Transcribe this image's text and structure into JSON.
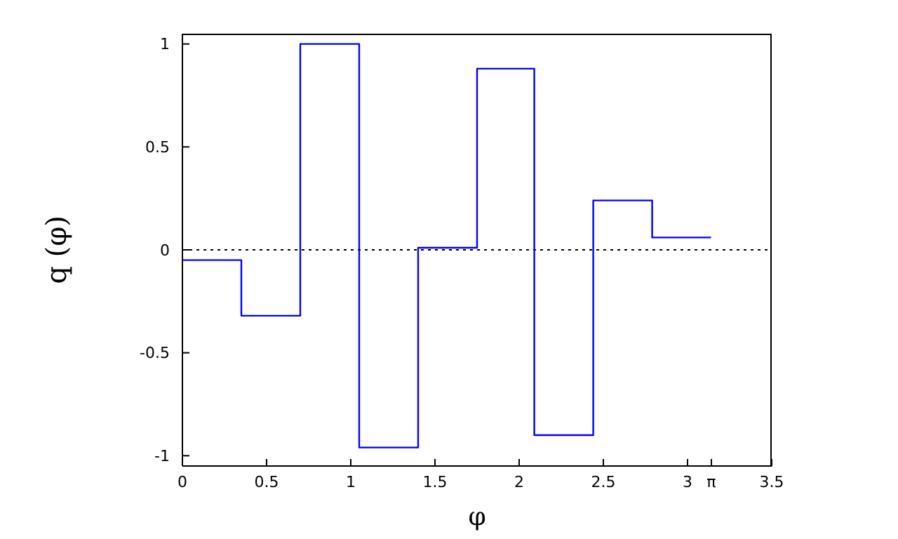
{
  "chart_data": {
    "type": "step",
    "xlabel": "φ",
    "ylabel": "q (φ)",
    "x": [
      0,
      0.35,
      0.7,
      1.05,
      1.4,
      1.75,
      2.09,
      2.44,
      2.79,
      3.14
    ],
    "series": [
      {
        "color": "#0000ff",
        "values": [
          -0.05,
          -0.32,
          1,
          -0.96,
          0.01,
          0.88,
          -0.9,
          0.24,
          0.06,
          0.06
        ]
      }
    ],
    "xlim": [
      0,
      3.5
    ],
    "xticks": [
      0,
      0.5,
      1,
      1.5,
      2,
      2.5,
      3,
      {
        "value": 3.14159,
        "label": "π"
      },
      3.5
    ],
    "ylim": [
      -1.05,
      1.05
    ],
    "yticks": [
      -1,
      -0.5,
      0,
      0.5,
      1
    ],
    "ref_lines": [
      {
        "axis": "y",
        "value": 0,
        "color": "#000000",
        "line_style": "dotted"
      }
    ],
    "grid": false,
    "legend": false,
    "marker": "none",
    "line_style": "solid"
  }
}
